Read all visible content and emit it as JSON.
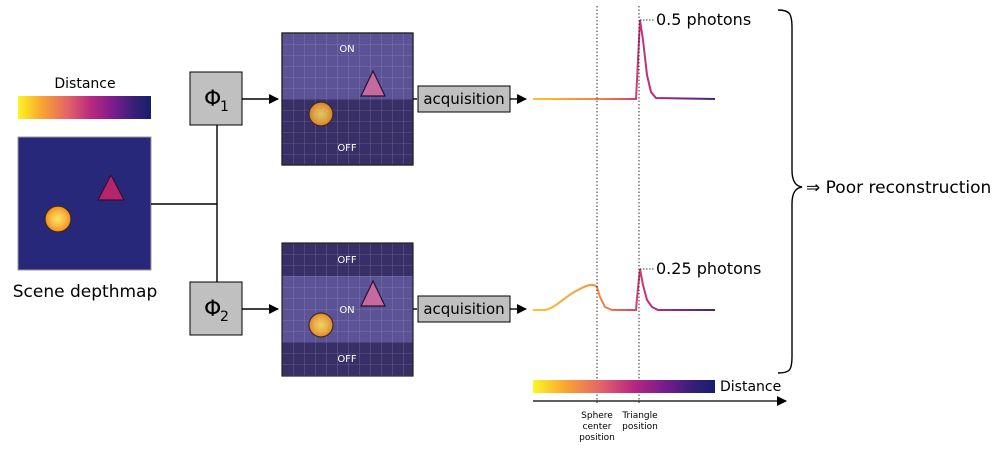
{
  "scene": {
    "colorbar_label": "Distance",
    "caption": "Scene depthmap"
  },
  "paths": [
    {
      "operator": "Φ",
      "subscript": "1",
      "mask_labels": [
        "ON",
        "OFF"
      ],
      "acquisition_label": "acquisition",
      "peak_label": "0.5 photons"
    },
    {
      "operator": "Φ",
      "subscript": "2",
      "mask_labels": [
        "OFF",
        "ON",
        "OFF"
      ],
      "acquisition_label": "acquisition",
      "peak_label": "0.25 photons"
    }
  ],
  "result_label": "⇒  Poor reconstruction",
  "axis": {
    "colorbar_label": "Distance",
    "markers": [
      {
        "lines": [
          "Sphere",
          "center",
          "position"
        ]
      },
      {
        "lines": [
          "Triangle",
          "position"
        ]
      }
    ]
  },
  "colors": {
    "scene_bg": "#27287a",
    "mask_bg": "#5c5296",
    "mask_dark": "#372f65",
    "box_fill": "#c0c0c0",
    "sphere": "#f7a033",
    "triangle": "#b5256e",
    "colormap": [
      "#fcf624",
      "#f9a432",
      "#e2616b",
      "#b8287f",
      "#7a1d8f",
      "#3b1f7a",
      "#161f6c"
    ]
  }
}
